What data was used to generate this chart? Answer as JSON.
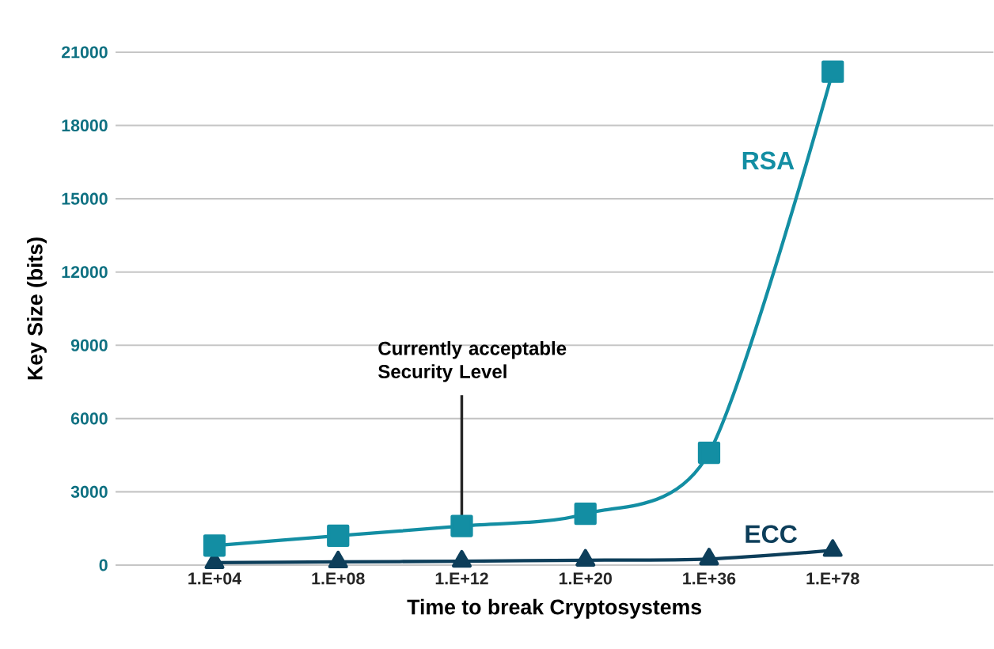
{
  "chart_data": {
    "type": "line",
    "xlabel": "Time to break Cryptosystems",
    "ylabel": "Key Size (bits)",
    "categories": [
      "1.E+04",
      "1.E+08",
      "1.E+12",
      "1.E+20",
      "1.E+36",
      "1.E+78"
    ],
    "series": [
      {
        "name": "RSA",
        "color": "#138ea3",
        "marker": "square",
        "values": [
          800,
          1200,
          1600,
          2100,
          4600,
          20200
        ]
      },
      {
        "name": "ECC",
        "color": "#0d3e5a",
        "marker": "triangle",
        "values": [
          100,
          130,
          160,
          200,
          250,
          600
        ]
      }
    ],
    "ylim": [
      0,
      21000
    ],
    "yticks": [
      0,
      3000,
      6000,
      9000,
      12000,
      15000,
      18000,
      21000
    ],
    "grid": "y",
    "legend": false,
    "annotations": [
      {
        "text": "Currently acceptable Security Level",
        "x": "1.E+12",
        "y": 1600
      }
    ]
  }
}
